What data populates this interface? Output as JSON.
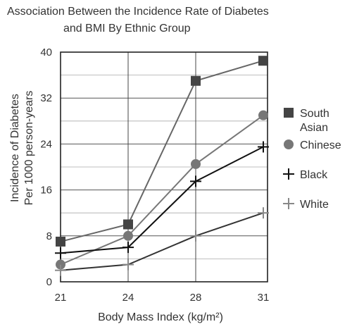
{
  "chart_data": {
    "type": "line",
    "title": "Association Between the Incidence Rate of Diabetes and BMI By Ethnic Group",
    "title_lines": [
      "Association Between the Incidence Rate of Diabetes",
      "and BMI By Ethnic Group"
    ],
    "xlabel": "Body Mass Index (kg/m²)",
    "ylabel": "Incidence of Diabetes Per 1000 person-years",
    "ylabel_lines": [
      "Incidence of Diabetes",
      "Per 1000 person-years"
    ],
    "categories": [
      "21",
      "24",
      "28",
      "31"
    ],
    "yticks": [
      "0",
      "8",
      "16",
      "24",
      "32",
      "40"
    ],
    "ylim": [
      0,
      40
    ],
    "grid": true,
    "legend_position": "right",
    "series": [
      {
        "name": "South Asian",
        "legend_lines": [
          "South",
          "Asian"
        ],
        "marker": "square",
        "color": "#444444",
        "line_color": "#666666",
        "values": [
          7,
          10,
          35,
          38.5
        ]
      },
      {
        "name": "Chinese",
        "legend_lines": [
          "Chinese"
        ],
        "marker": "circle",
        "color": "#777777",
        "line_color": "#777777",
        "values": [
          3,
          8,
          20.5,
          29
        ]
      },
      {
        "name": "Black",
        "legend_lines": [
          "Black"
        ],
        "marker": "plus",
        "color": "#111111",
        "line_color": "#111111",
        "values": [
          5,
          6,
          17.5,
          23.5
        ]
      },
      {
        "name": "White",
        "legend_lines": [
          "White"
        ],
        "marker": "plus",
        "color": "#888888",
        "line_color": "#333333",
        "values": [
          2,
          3,
          8,
          12
        ]
      }
    ]
  }
}
